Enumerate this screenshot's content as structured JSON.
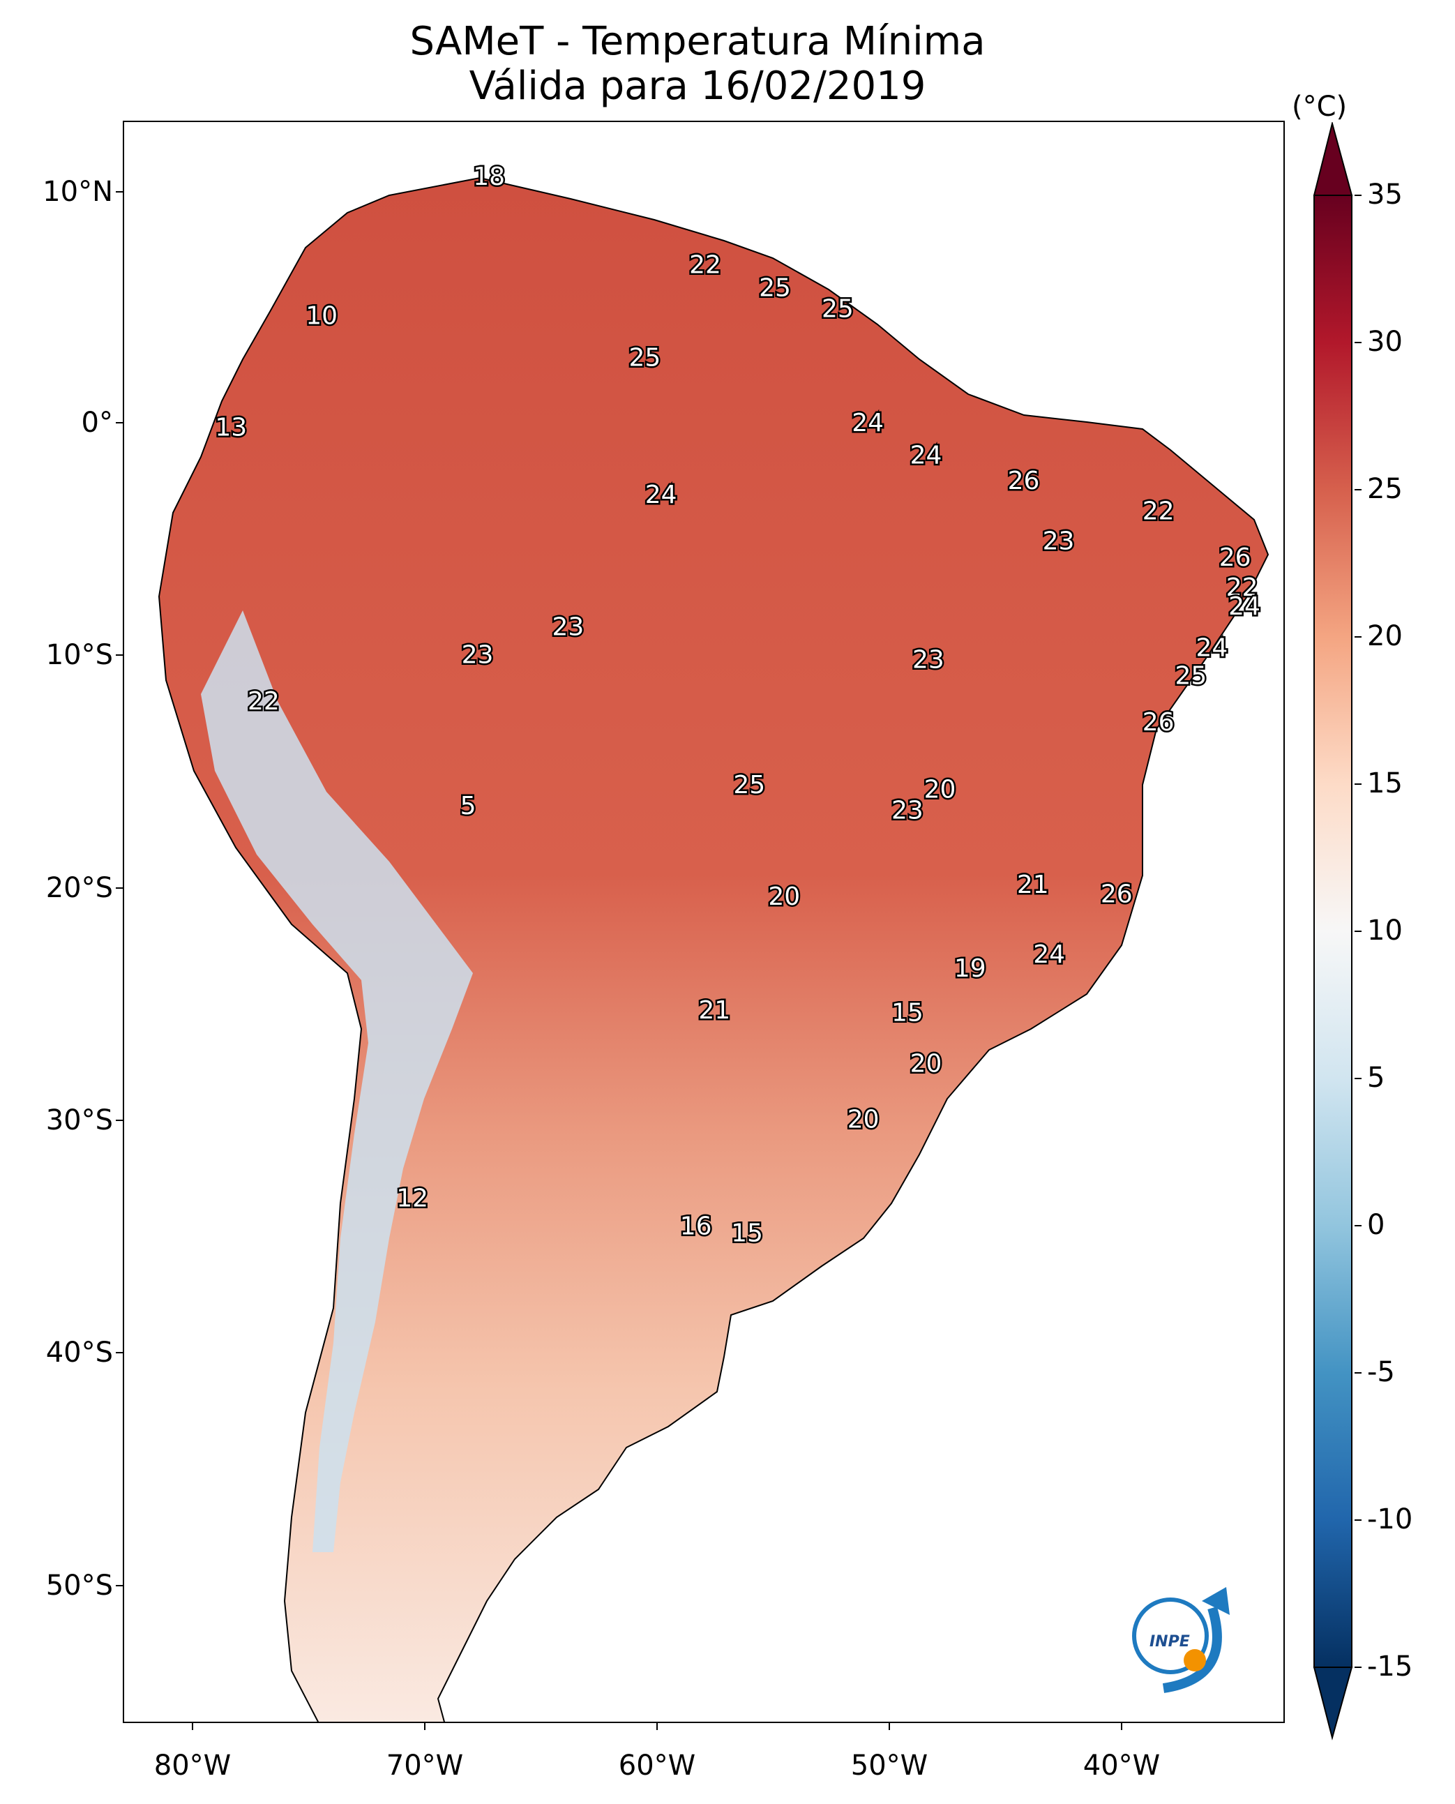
{
  "title": {
    "line1": "SAMeT - Temperatura Mínima",
    "line2": "Válida para 16/02/2019"
  },
  "colorbar": {
    "unit": "(°C)",
    "ticks": [
      "35",
      "30",
      "25",
      "20",
      "15",
      "10",
      "5",
      "0",
      "-5",
      "-10",
      "-15"
    ],
    "range": [
      -15,
      35
    ],
    "extend": "both",
    "colormap": "RdBu_r",
    "colors": [
      "#053061",
      "#2166ac",
      "#4393c3",
      "#92c5de",
      "#d1e5f0",
      "#f7f7f7",
      "#fddbc7",
      "#f4a582",
      "#d6604d",
      "#b2182b",
      "#67001f"
    ]
  },
  "axes": {
    "lat_labels": [
      "10°N",
      "0°",
      "10°S",
      "20°S",
      "30°S",
      "40°S",
      "50°S"
    ],
    "lon_labels": [
      "80°W",
      "70°W",
      "60°W",
      "50°W",
      "40°W"
    ]
  },
  "map": {
    "region": "South America",
    "lon_range": [
      -83,
      -33
    ],
    "lat_range": [
      -56,
      13
    ],
    "land_color": "#d9624d",
    "ocean_color": "#ffffff"
  },
  "stations": [
    {
      "label": "18",
      "lon": -67.3,
      "lat": 10.6
    },
    {
      "label": "10",
      "lon": -74.5,
      "lat": 4.6
    },
    {
      "label": "22",
      "lon": -58.0,
      "lat": 6.8
    },
    {
      "label": "25",
      "lon": -55.0,
      "lat": 5.8
    },
    {
      "label": "25",
      "lon": -52.3,
      "lat": 4.9
    },
    {
      "label": "25",
      "lon": -60.6,
      "lat": 2.8
    },
    {
      "label": "13",
      "lon": -78.4,
      "lat": -0.2
    },
    {
      "label": "24",
      "lon": -51.0,
      "lat": 0.0
    },
    {
      "label": "24",
      "lon": -48.5,
      "lat": -1.4
    },
    {
      "label": "26",
      "lon": -44.3,
      "lat": -2.5
    },
    {
      "label": "22",
      "lon": -38.5,
      "lat": -3.8
    },
    {
      "label": "23",
      "lon": -42.8,
      "lat": -5.1
    },
    {
      "label": "26",
      "lon": -35.2,
      "lat": -5.8
    },
    {
      "label": "24",
      "lon": -59.9,
      "lat": -3.1
    },
    {
      "label": "22",
      "lon": -34.9,
      "lat": -7.1
    },
    {
      "label": "24",
      "lon": -34.8,
      "lat": -7.9
    },
    {
      "label": "23",
      "lon": -63.9,
      "lat": -8.8
    },
    {
      "label": "23",
      "lon": -67.8,
      "lat": -10.0
    },
    {
      "label": "24",
      "lon": -36.2,
      "lat": -9.7
    },
    {
      "label": "23",
      "lon": -48.4,
      "lat": -10.2
    },
    {
      "label": "25",
      "lon": -37.1,
      "lat": -10.9
    },
    {
      "label": "22",
      "lon": -77.0,
      "lat": -12.0
    },
    {
      "label": "26",
      "lon": -38.5,
      "lat": -12.9
    },
    {
      "label": "25",
      "lon": -56.1,
      "lat": -15.6
    },
    {
      "label": "20",
      "lon": -47.9,
      "lat": -15.8
    },
    {
      "label": "23",
      "lon": -49.3,
      "lat": -16.7
    },
    {
      "label": "5",
      "lon": -68.2,
      "lat": -16.5
    },
    {
      "label": "21",
      "lon": -43.9,
      "lat": -19.9
    },
    {
      "label": "26",
      "lon": -40.3,
      "lat": -20.3
    },
    {
      "label": "20",
      "lon": -54.6,
      "lat": -20.4
    },
    {
      "label": "24",
      "lon": -43.2,
      "lat": -22.9
    },
    {
      "label": "19",
      "lon": -46.6,
      "lat": -23.5
    },
    {
      "label": "21",
      "lon": -57.6,
      "lat": -25.3
    },
    {
      "label": "15",
      "lon": -49.3,
      "lat": -25.4
    },
    {
      "label": "20",
      "lon": -48.5,
      "lat": -27.6
    },
    {
      "label": "20",
      "lon": -51.2,
      "lat": -30.0
    },
    {
      "label": "12",
      "lon": -70.6,
      "lat": -33.4
    },
    {
      "label": "16",
      "lon": -58.4,
      "lat": -34.6
    },
    {
      "label": "15",
      "lon": -56.2,
      "lat": -34.9
    }
  ],
  "logo": {
    "text": "INPE"
  }
}
